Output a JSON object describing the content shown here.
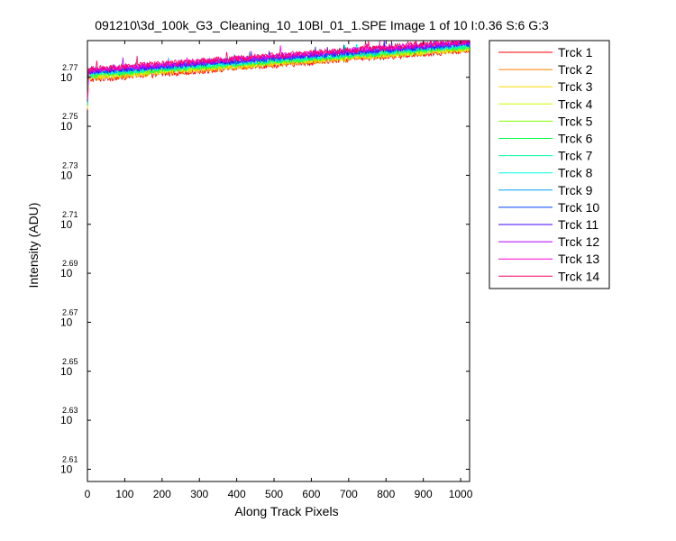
{
  "chart_data": {
    "type": "line",
    "title": "091210\\3d_100k_G3_Cleaning_10_10Bl_01_1.SPE  Image 1 of 10  I:0.36  S:6  G:3",
    "xlabel": "Along Track Pixels",
    "ylabel": "Intensity (ADU)",
    "yscale": "log10",
    "xlim": [
      0,
      1024
    ],
    "ylim_exponent": [
      2.605,
      2.785
    ],
    "x_ticks": [
      0,
      100,
      200,
      300,
      400,
      500,
      600,
      700,
      800,
      900,
      1000
    ],
    "y_tick_exponents": [
      2.61,
      2.63,
      2.65,
      2.67,
      2.69,
      2.71,
      2.73,
      2.75,
      2.77
    ],
    "y_tick_base": "10",
    "legend_position": "outside-right",
    "series": [
      {
        "name": "Trck 1",
        "color": "#ff0000",
        "start_exp": 2.769,
        "end_exp": 2.781
      },
      {
        "name": "Trck 2",
        "color": "#ff8000",
        "start_exp": 2.7695,
        "end_exp": 2.7813
      },
      {
        "name": "Trck 3",
        "color": "#ffd700",
        "start_exp": 2.77,
        "end_exp": 2.7816
      },
      {
        "name": "Trck 4",
        "color": "#c8ff00",
        "start_exp": 2.7703,
        "end_exp": 2.7819
      },
      {
        "name": "Trck 5",
        "color": "#80ff00",
        "start_exp": 2.7706,
        "end_exp": 2.7822
      },
      {
        "name": "Trck 6",
        "color": "#00ff40",
        "start_exp": 2.7709,
        "end_exp": 2.7825
      },
      {
        "name": "Trck 7",
        "color": "#00ff9f",
        "start_exp": 2.7712,
        "end_exp": 2.7828
      },
      {
        "name": "Trck 8",
        "color": "#00ffdf",
        "start_exp": 2.7715,
        "end_exp": 2.7831
      },
      {
        "name": "Trck 9",
        "color": "#00a0ff",
        "start_exp": 2.7718,
        "end_exp": 2.7834
      },
      {
        "name": "Trck 10",
        "color": "#0040ff",
        "start_exp": 2.7721,
        "end_exp": 2.7837
      },
      {
        "name": "Trck 11",
        "color": "#4000ff",
        "start_exp": 2.7724,
        "end_exp": 2.784
      },
      {
        "name": "Trck 12",
        "color": "#b000ff",
        "start_exp": 2.7727,
        "end_exp": 2.7843
      },
      {
        "name": "Trck 13",
        "color": "#ff00d0",
        "start_exp": 2.773,
        "end_exp": 2.7846
      },
      {
        "name": "Trck 14",
        "color": "#ff0060",
        "start_exp": 2.7733,
        "end_exp": 2.7849
      }
    ],
    "noise_amplitude_exp": 0.0012,
    "initial_dip_exp": 2.7565
  }
}
